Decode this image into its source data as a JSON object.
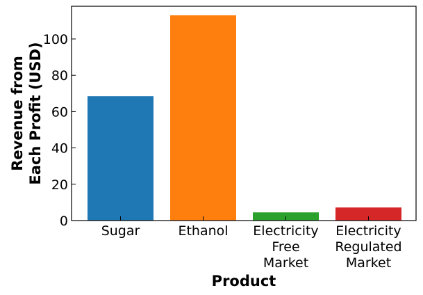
{
  "chart_data": {
    "type": "bar",
    "categories": [
      [
        "Sugar"
      ],
      [
        "Ethanol"
      ],
      [
        "Electricity",
        "Free",
        "Market"
      ],
      [
        "Electricity",
        "Regulated",
        "Market"
      ]
    ],
    "values": [
      68.5,
      113,
      4.5,
      7.2
    ],
    "colors": [
      "#1f77b4",
      "#ff7f0e",
      "#2ca02c",
      "#d62728"
    ],
    "xlabel": "Product",
    "ylabel": [
      "Revenue from",
      "Each Profit (USD)"
    ],
    "ylim": [
      0,
      118
    ],
    "yticks": [
      0,
      20,
      40,
      60,
      80,
      100
    ],
    "grid": false,
    "legend": false
  }
}
